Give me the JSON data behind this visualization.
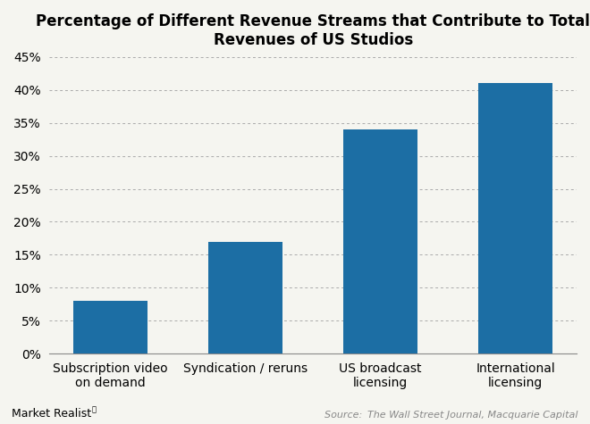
{
  "title": "Percentage of Different Revenue Streams that Contribute to Total\nRevenues of US Studios",
  "categories": [
    "Subscription video\non demand",
    "Syndication / reruns",
    "US broadcast\nlicensing",
    "International\nlicensing"
  ],
  "values": [
    8,
    17,
    34,
    41
  ],
  "bar_color": "#1c6ea4",
  "ylim": [
    0,
    45
  ],
  "yticks": [
    0,
    5,
    10,
    15,
    20,
    25,
    30,
    35,
    40,
    45
  ],
  "background_color": "#f5f5f0",
  "plot_bg_color": "#f5f5f0",
  "title_fontsize": 12,
  "tick_fontsize": 10,
  "source_text": "Source:  The Wall Street Journal, Macquarie Capital",
  "branding_text": "Market Realist",
  "grid_color": "#aaaaaa",
  "bar_width": 0.55
}
